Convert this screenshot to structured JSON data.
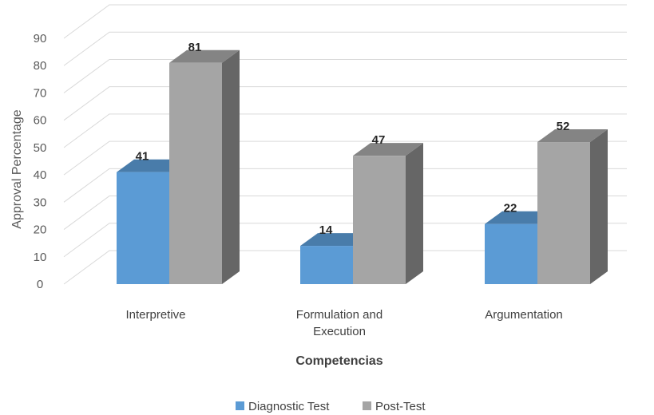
{
  "chart_data": {
    "type": "bar",
    "style": "3d-clustered-column",
    "categories": [
      "Interpretive",
      "Formulation and Execution",
      "Argumentation"
    ],
    "category_lines": [
      [
        "Interpretive"
      ],
      [
        "Formulation and",
        "Execution"
      ],
      [
        "Argumentation"
      ]
    ],
    "series": [
      {
        "name": "Diagnostic Test",
        "values": [
          41,
          14,
          22
        ],
        "color": "#5b9bd5"
      },
      {
        "name": "Post-Test",
        "values": [
          81,
          47,
          52
        ],
        "color": "#a5a5a5"
      }
    ],
    "xlabel": "Competencias",
    "ylabel": "Approval Percentage",
    "ylim": [
      0,
      90
    ],
    "yticks": [
      0,
      10,
      20,
      30,
      40,
      50,
      60,
      70,
      80,
      90
    ],
    "grid": true,
    "legend": "bottom",
    "data_labels": true
  }
}
